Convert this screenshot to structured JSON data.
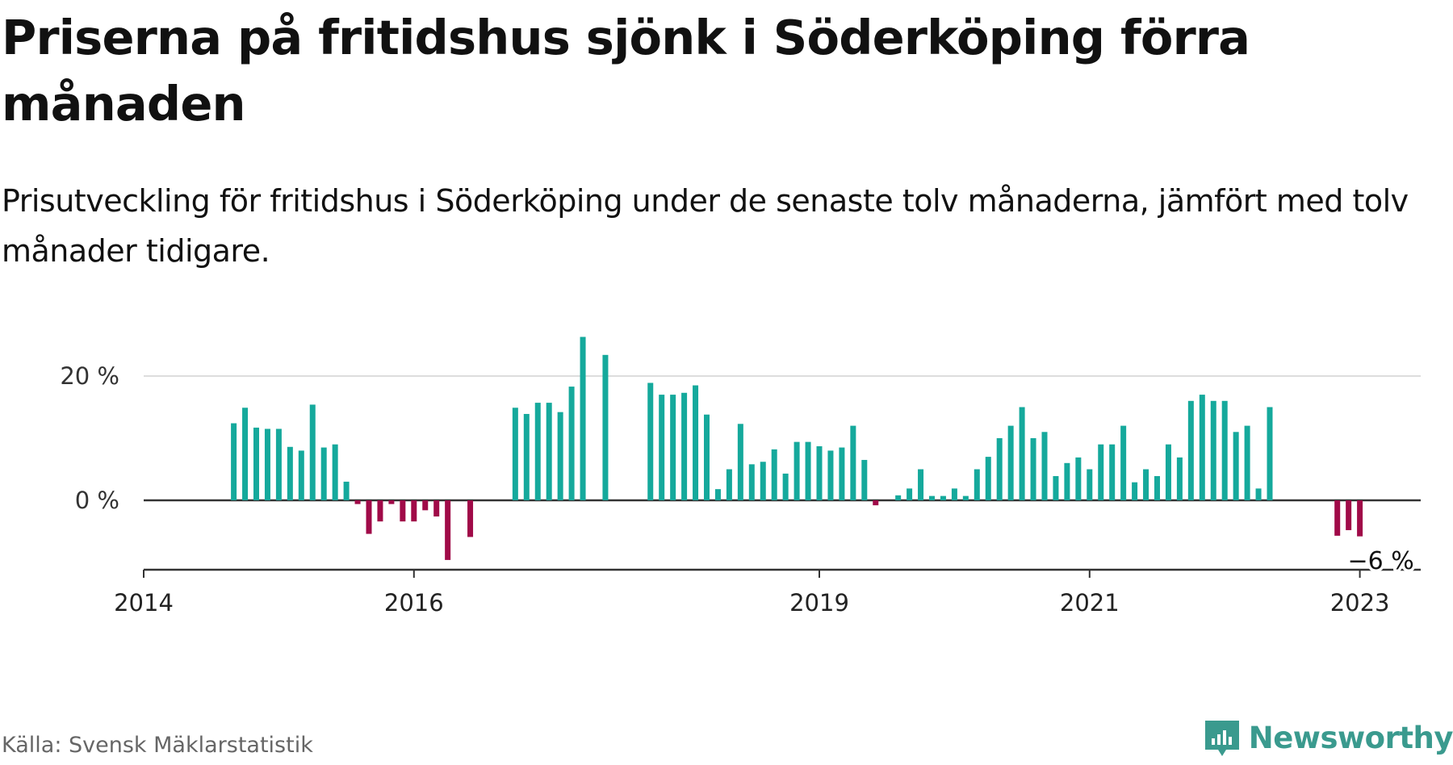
{
  "title": "Priserna på fritidshus sjönk i Söderköping förra månaden",
  "subtitle": "Prisutveckling för fritidshus i Söderköping under de senaste tolv månaderna, jämfört med tolv månader tidigare.",
  "source": "Källa: Svensk Mäklarstatistik",
  "brand": {
    "name": "Newsworthy",
    "icon": "newsworthy-logo-icon",
    "color": "#3a9a8e"
  },
  "colors": {
    "positive": "#15a99c",
    "negative": "#a00a48",
    "grid": "#dddddd",
    "axis": "#333333"
  },
  "chart_data": {
    "type": "bar",
    "title": "Priserna på fritidshus sjönk i Söderköping förra månaden",
    "subtitle": "Prisutveckling för fritidshus i Söderköping under de senaste tolv månaderna, jämfört med tolv månader tidigare.",
    "x_unit": "months since 2014-01",
    "xlim": [
      0,
      114
    ],
    "ylim": [
      -10,
      30
    ],
    "y_ticks": [
      {
        "value": 0,
        "label": "0 %"
      },
      {
        "value": 20,
        "label": "20 %"
      }
    ],
    "x_ticks": [
      {
        "value": 0,
        "label": "2014"
      },
      {
        "value": 24,
        "label": "2016"
      },
      {
        "value": 60,
        "label": "2019"
      },
      {
        "value": 84,
        "label": "2021"
      },
      {
        "value": 108,
        "label": "2023"
      }
    ],
    "grid": true,
    "last_value_label": "−6 %",
    "points": [
      {
        "x": 8,
        "y": 12.4
      },
      {
        "x": 9,
        "y": 14.9
      },
      {
        "x": 10,
        "y": 11.7
      },
      {
        "x": 11,
        "y": 11.5
      },
      {
        "x": 12,
        "y": 11.5
      },
      {
        "x": 13,
        "y": 8.6
      },
      {
        "x": 14,
        "y": 8.0
      },
      {
        "x": 15,
        "y": 15.4
      },
      {
        "x": 16,
        "y": 8.5
      },
      {
        "x": 17,
        "y": 9.0
      },
      {
        "x": 18,
        "y": 3.0
      },
      {
        "x": 19,
        "y": -0.6
      },
      {
        "x": 20,
        "y": -5.4
      },
      {
        "x": 21,
        "y": -3.4
      },
      {
        "x": 22,
        "y": -0.6
      },
      {
        "x": 23,
        "y": -3.4
      },
      {
        "x": 24,
        "y": -3.4
      },
      {
        "x": 25,
        "y": -1.6
      },
      {
        "x": 26,
        "y": -2.6
      },
      {
        "x": 27,
        "y": -9.6
      },
      {
        "x": 29,
        "y": -5.9
      },
      {
        "x": 33,
        "y": 14.9
      },
      {
        "x": 34,
        "y": 13.9
      },
      {
        "x": 35,
        "y": 15.7
      },
      {
        "x": 36,
        "y": 15.7
      },
      {
        "x": 37,
        "y": 14.2
      },
      {
        "x": 38,
        "y": 18.3
      },
      {
        "x": 39,
        "y": 26.3
      },
      {
        "x": 41,
        "y": 23.4
      },
      {
        "x": 45,
        "y": 18.9
      },
      {
        "x": 46,
        "y": 17.0
      },
      {
        "x": 47,
        "y": 17.0
      },
      {
        "x": 48,
        "y": 17.3
      },
      {
        "x": 49,
        "y": 18.5
      },
      {
        "x": 50,
        "y": 13.8
      },
      {
        "x": 51,
        "y": 1.8
      },
      {
        "x": 52,
        "y": 5.0
      },
      {
        "x": 53,
        "y": 12.3
      },
      {
        "x": 54,
        "y": 5.8
      },
      {
        "x": 55,
        "y": 6.2
      },
      {
        "x": 56,
        "y": 8.2
      },
      {
        "x": 57,
        "y": 4.3
      },
      {
        "x": 58,
        "y": 9.4
      },
      {
        "x": 59,
        "y": 9.4
      },
      {
        "x": 60,
        "y": 8.7
      },
      {
        "x": 61,
        "y": 8.0
      },
      {
        "x": 62,
        "y": 8.5
      },
      {
        "x": 63,
        "y": 12.0
      },
      {
        "x": 64,
        "y": 6.5
      },
      {
        "x": 65,
        "y": -0.8
      },
      {
        "x": 67,
        "y": 0.8
      },
      {
        "x": 68,
        "y": 1.9
      },
      {
        "x": 69,
        "y": 5.0
      },
      {
        "x": 70,
        "y": 0.7
      },
      {
        "x": 71,
        "y": 0.7
      },
      {
        "x": 72,
        "y": 1.9
      },
      {
        "x": 73,
        "y": 0.7
      },
      {
        "x": 74,
        "y": 5.0
      },
      {
        "x": 75,
        "y": 7.0
      },
      {
        "x": 76,
        "y": 10.0
      },
      {
        "x": 77,
        "y": 12.0
      },
      {
        "x": 78,
        "y": 15.0
      },
      {
        "x": 79,
        "y": 10.0
      },
      {
        "x": 80,
        "y": 11.0
      },
      {
        "x": 81,
        "y": 3.9
      },
      {
        "x": 82,
        "y": 6.0
      },
      {
        "x": 83,
        "y": 6.9
      },
      {
        "x": 84,
        "y": 5.0
      },
      {
        "x": 85,
        "y": 9.0
      },
      {
        "x": 86,
        "y": 9.0
      },
      {
        "x": 87,
        "y": 12.0
      },
      {
        "x": 88,
        "y": 2.9
      },
      {
        "x": 89,
        "y": 5.0
      },
      {
        "x": 90,
        "y": 3.9
      },
      {
        "x": 91,
        "y": 9.0
      },
      {
        "x": 92,
        "y": 6.9
      },
      {
        "x": 93,
        "y": 16.0
      },
      {
        "x": 94,
        "y": 17.0
      },
      {
        "x": 95,
        "y": 16.0
      },
      {
        "x": 96,
        "y": 16.0
      },
      {
        "x": 97,
        "y": 11.0
      },
      {
        "x": 98,
        "y": 12.0
      },
      {
        "x": 99,
        "y": 1.9
      },
      {
        "x": 100,
        "y": 15.0
      },
      {
        "x": 106,
        "y": -5.7
      },
      {
        "x": 107,
        "y": -4.8
      },
      {
        "x": 108,
        "y": -5.8
      }
    ]
  }
}
